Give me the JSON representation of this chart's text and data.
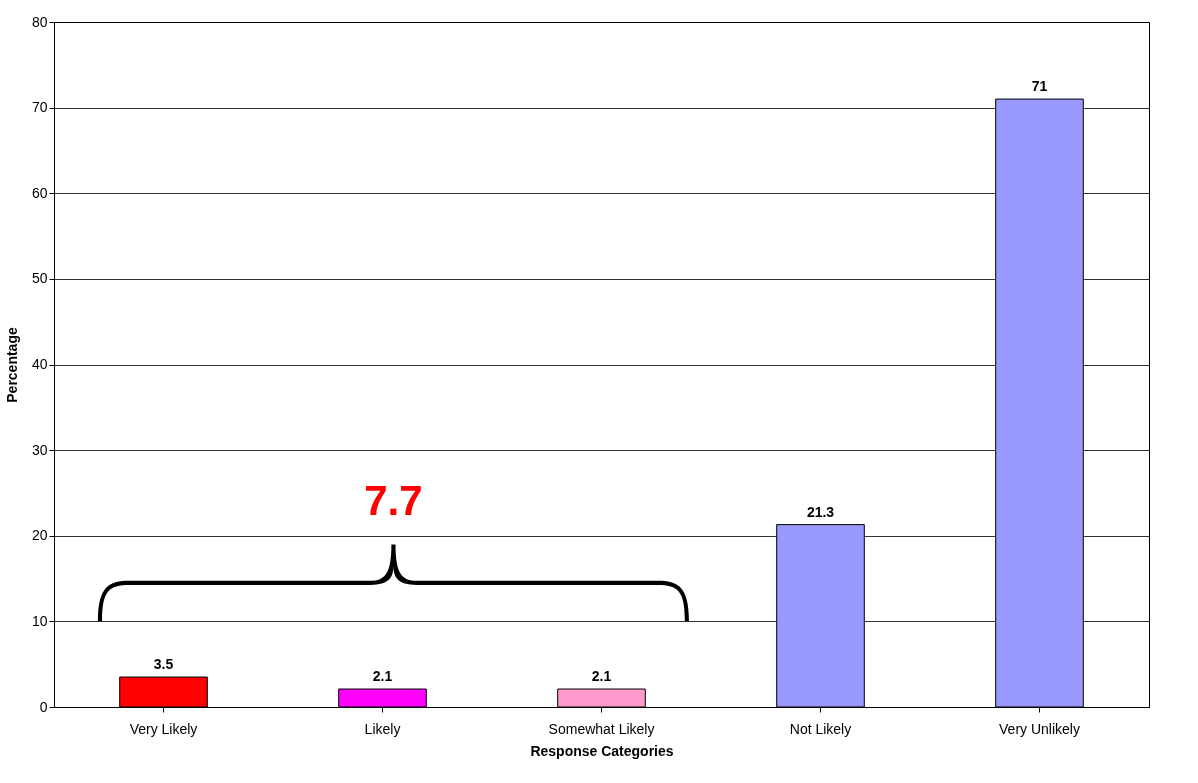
{
  "chart_data": {
    "type": "bar",
    "xlabel": "Response Categories",
    "ylabel": "Percentage",
    "categories": [
      "Very Likely",
      "Likely",
      "Somewhat Likely",
      "Not Likely",
      "Very Unlikely"
    ],
    "values": [
      3.5,
      2.1,
      2.1,
      21.3,
      71
    ],
    "colors": [
      "#ff0000",
      "#ff00ff",
      "#ff99cc",
      "#9999ff",
      "#9999ff"
    ],
    "ylim": [
      0,
      80
    ],
    "yticks": [
      0,
      10,
      20,
      30,
      40,
      50,
      60,
      70,
      80
    ],
    "grid": "y",
    "data_labels": true,
    "annotations": [
      "7.7"
    ]
  }
}
